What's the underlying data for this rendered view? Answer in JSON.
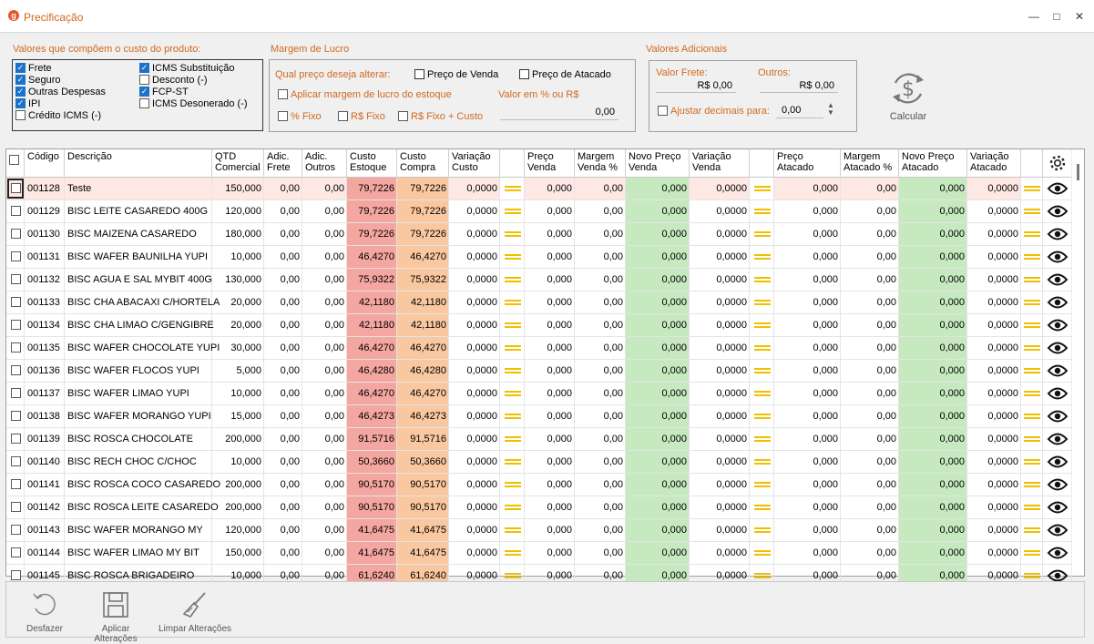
{
  "window": {
    "title": "Precificação",
    "icon": "app-logo-icon"
  },
  "custo": {
    "title": "Valores que compõem o custo do produto:",
    "col1": [
      {
        "label": "Frete",
        "checked": true
      },
      {
        "label": "Seguro",
        "checked": true
      },
      {
        "label": "Outras Despesas",
        "checked": true
      },
      {
        "label": "IPI",
        "checked": true
      },
      {
        "label": "Crédito ICMS (-)",
        "checked": false
      }
    ],
    "col2": [
      {
        "label": "ICMS Substituição",
        "checked": true
      },
      {
        "label": "Desconto (-)",
        "checked": false
      },
      {
        "label": "FCP-ST",
        "checked": true
      },
      {
        "label": "ICMS Desonerado (-)",
        "checked": false
      }
    ]
  },
  "margem": {
    "title": "Margem de Lucro",
    "question": "Qual preço deseja alterar:",
    "preco_venda": "Preço de Venda",
    "preco_atacado": "Preço de Atacado",
    "aplicar": "Aplicar margem de lucro do estoque",
    "valor_label": "Valor em % ou R$",
    "valor": "0,00",
    "pct_fixo": "% Fixo",
    "rs_fixo": "R$ Fixo",
    "rs_fixo_custo": "R$ Fixo + Custo"
  },
  "adicionais": {
    "title": "Valores Adicionais",
    "frete_label": "Valor Frete:",
    "frete_value": "R$ 0,00",
    "outros_label": "Outros:",
    "outros_value": "R$ 0,00",
    "ajustar_label": "Ajustar decimais para:",
    "ajustar_value": "0,00"
  },
  "calcular": {
    "label": "Calcular",
    "icon": "refresh-dollar-icon"
  },
  "grid": {
    "headers": {
      "codigo": "Código",
      "descricao": "Descrição",
      "qtd": "QTD Comercial",
      "adic_frete": "Adic. Frete",
      "adic_outros": "Adic. Outros",
      "custo_estoque": "Custo Estoque",
      "custo_compra": "Custo Compra",
      "variacao_custo": "Variação Custo",
      "preco_venda": "Preço Venda",
      "margem_venda": "Margem Venda %",
      "novo_preco_venda": "Novo Preço Venda",
      "variacao_venda": "Variação Venda",
      "preco_atacado": "Preço Atacado",
      "margem_atacado": "Margem Atacado %",
      "novo_preco_atacado": "Novo Preço Atacado",
      "variacao_atacado": "Variação Atacado"
    },
    "colors": {
      "custo_estoque": "#f4a6a0",
      "custo_compra": "#f9c8a0",
      "novo_preco": "#c7e9c0",
      "highlight_row": "#fde8e4"
    },
    "rows": [
      {
        "codigo": "001128",
        "descricao": "Teste",
        "qtd": "150,000",
        "custo": "79,7226"
      },
      {
        "codigo": "001129",
        "descricao": "BISC LEITE CASAREDO 400G",
        "qtd": "120,000",
        "custo": "79,7226"
      },
      {
        "codigo": "001130",
        "descricao": "BISC MAIZENA CASAREDO",
        "qtd": "180,000",
        "custo": "79,7226"
      },
      {
        "codigo": "001131",
        "descricao": "BISC WAFER BAUNILHA YUPI",
        "qtd": "10,000",
        "custo": "46,4270"
      },
      {
        "codigo": "001132",
        "descricao": "BISC AGUA E SAL MYBIT 400G",
        "qtd": "130,000",
        "custo": "75,9322"
      },
      {
        "codigo": "001133",
        "descricao": "BISC CHA ABACAXI C/HORTELA",
        "qtd": "20,000",
        "custo": "42,1180"
      },
      {
        "codigo": "001134",
        "descricao": "BISC CHA LIMAO C/GENGIBRE",
        "qtd": "20,000",
        "custo": "42,1180"
      },
      {
        "codigo": "001135",
        "descricao": "BISC WAFER CHOCOLATE YUPI",
        "qtd": "30,000",
        "custo": "46,4270"
      },
      {
        "codigo": "001136",
        "descricao": "BISC WAFER FLOCOS YUPI",
        "qtd": "5,000",
        "custo": "46,4280"
      },
      {
        "codigo": "001137",
        "descricao": "BISC WAFER LIMAO YUPI",
        "qtd": "10,000",
        "custo": "46,4270"
      },
      {
        "codigo": "001138",
        "descricao": "BISC WAFER MORANGO YUPI",
        "qtd": "15,000",
        "custo": "46,4273"
      },
      {
        "codigo": "001139",
        "descricao": "BISC ROSCA CHOCOLATE",
        "qtd": "200,000",
        "custo": "91,5716"
      },
      {
        "codigo": "001140",
        "descricao": "BISC RECH CHOC C/CHOC",
        "qtd": "10,000",
        "custo": "50,3660"
      },
      {
        "codigo": "001141",
        "descricao": "BISC ROSCA COCO CASAREDO",
        "qtd": "200,000",
        "custo": "90,5170"
      },
      {
        "codigo": "001142",
        "descricao": "BISC ROSCA LEITE CASAREDO",
        "qtd": "200,000",
        "custo": "90,5170"
      },
      {
        "codigo": "001143",
        "descricao": "BISC WAFER MORANGO MY",
        "qtd": "120,000",
        "custo": "41,6475"
      },
      {
        "codigo": "001144",
        "descricao": "BISC WAFER LIMAO MY BIT",
        "qtd": "150,000",
        "custo": "41,6475"
      },
      {
        "codigo": "001145",
        "descricao": "BISC ROSCA BRIGADEIRO",
        "qtd": "10,000",
        "custo": "61,6240"
      }
    ],
    "zero2": "0,00",
    "zero3": "0,000",
    "zero4": "0,0000"
  },
  "toolbar": {
    "desfazer": "Desfazer",
    "aplicar": "Aplicar Alterações",
    "limpar": "Limpar Alterações"
  }
}
